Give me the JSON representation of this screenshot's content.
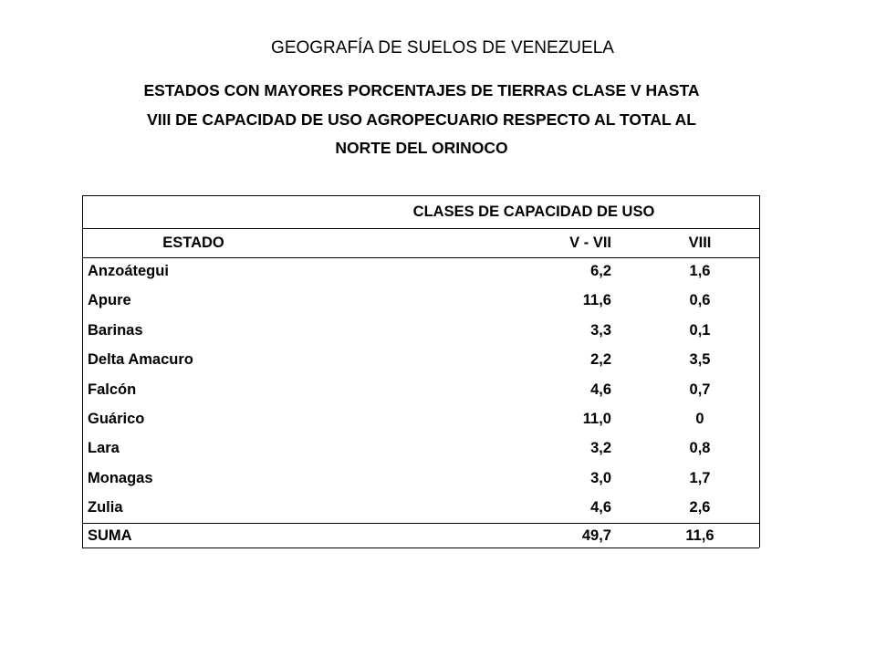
{
  "title": "GEOGRAFÍA DE SUELOS DE VENEZUELA",
  "subtitle_lines": [
    "ESTADOS CON MAYORES PORCENTAJES DE TIERRAS CLASE V HASTA",
    "VIII DE CAPACIDAD DE USO AGROPECUARIO RESPECTO AL TOTAL  AL",
    "NORTE DEL ORINOCO"
  ],
  "table": {
    "group_header": "CLASES DE CAPACIDAD DE USO",
    "columns": [
      "ESTADO",
      "V - VII",
      "VIII"
    ],
    "rows": [
      [
        "Anzoátegui",
        "6,2",
        "1,6"
      ],
      [
        "Apure",
        "11,6",
        "0,6"
      ],
      [
        "Barinas",
        "3,3",
        "0,1"
      ],
      [
        "Delta Amacuro",
        "2,2",
        "3,5"
      ],
      [
        "Falcón",
        "4,6",
        "0,7"
      ],
      [
        "Guárico",
        "11,0",
        "0"
      ],
      [
        "Lara",
        "3,2",
        "0,8"
      ],
      [
        "Monagas",
        "3,0",
        "1,7"
      ],
      [
        "Zulia",
        "4,6",
        "2,6"
      ]
    ],
    "total": [
      "SUMA",
      "49,7",
      "11,6"
    ]
  }
}
